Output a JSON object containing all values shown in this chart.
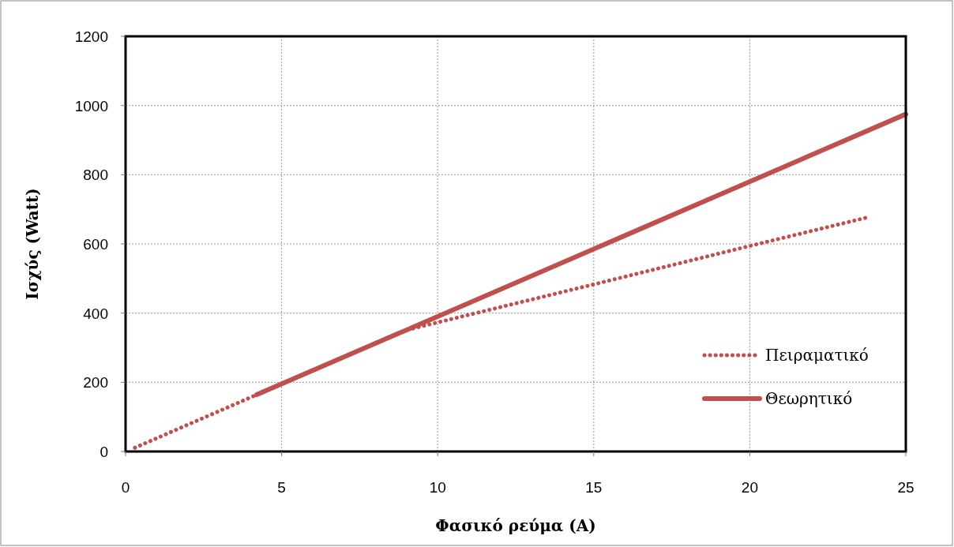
{
  "chart_data": {
    "type": "line",
    "xlabel": "Φασικό ρεύμα (A)",
    "ylabel": "Ισχύς (Watt)",
    "xlim": [
      0,
      25
    ],
    "ylim": [
      0,
      1200
    ],
    "xticks": [
      0,
      5,
      10,
      15,
      20,
      25
    ],
    "yticks": [
      0,
      200,
      400,
      600,
      800,
      1000,
      1200
    ],
    "grid": true,
    "legend": "bottom right",
    "series": [
      {
        "name": "Πειραματικό",
        "color": "#c0504d",
        "line_style": "dotted",
        "x": [
          0.3,
          4.2,
          9.0,
          10,
          15,
          20,
          23.7
        ],
        "values": [
          11,
          164,
          351,
          373,
          483,
          594,
          675
        ]
      },
      {
        "name": "Θεωρητικό",
        "color": "#c0504d",
        "line_style": "solid",
        "x": [
          4.2,
          25
        ],
        "values": [
          164,
          975
        ]
      }
    ]
  }
}
